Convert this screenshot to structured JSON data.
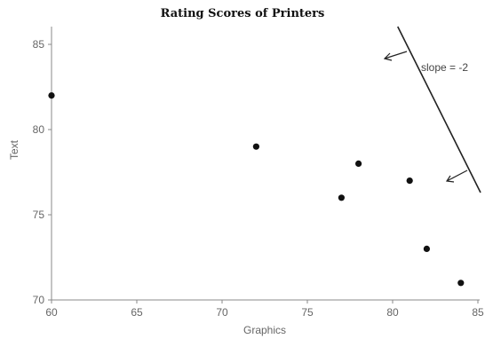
{
  "chart_data": {
    "type": "scatter",
    "title": "Rating Scores of Printers",
    "xlabel": "Graphics",
    "ylabel": "Text",
    "xlim": [
      60,
      85
    ],
    "ylim": [
      70,
      86
    ],
    "x_ticks": [
      60,
      65,
      70,
      75,
      80,
      85
    ],
    "y_ticks": [
      70,
      75,
      80,
      85
    ],
    "grid": false,
    "points": [
      {
        "x": 60,
        "y": 82
      },
      {
        "x": 72,
        "y": 79
      },
      {
        "x": 77,
        "y": 76
      },
      {
        "x": 78,
        "y": 78
      },
      {
        "x": 81,
        "y": 77
      },
      {
        "x": 82,
        "y": 73
      },
      {
        "x": 84,
        "y": 71
      }
    ],
    "annotation": {
      "text": "slope = -2",
      "line": {
        "x1": 80.3,
        "y1": 86,
        "x2": 85,
        "y2": 76.5
      }
    },
    "colors": {
      "points": "#111111",
      "axes": "#888888",
      "annotation": "#222222"
    }
  }
}
